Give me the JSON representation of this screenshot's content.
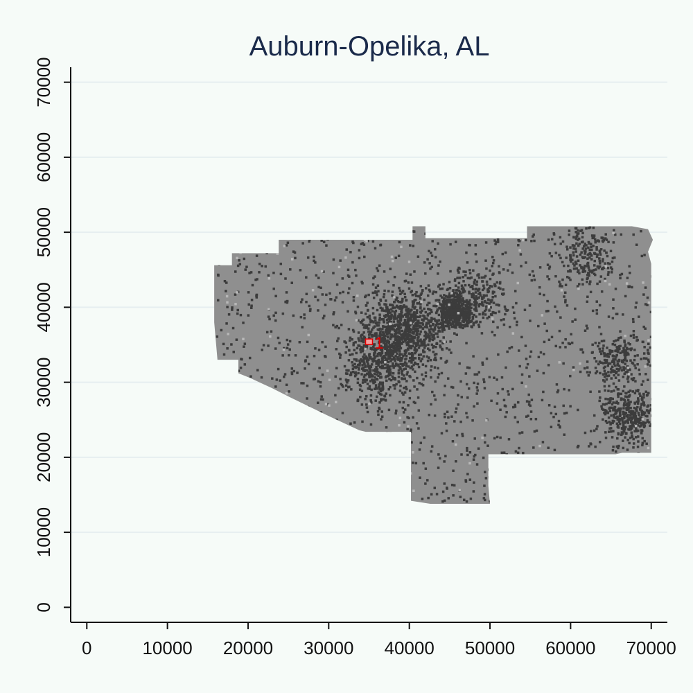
{
  "chart_data": {
    "type": "scatter",
    "title": "Auburn-Opelika, AL",
    "xlabel": "",
    "ylabel": "",
    "xlim": [
      -2000,
      72000
    ],
    "ylim": [
      -2000,
      72000
    ],
    "x_ticks": [
      "0",
      "10000",
      "20000",
      "30000",
      "40000",
      "50000",
      "60000",
      "70000"
    ],
    "y_ticks": [
      "0",
      "10000",
      "20000",
      "30000",
      "40000",
      "50000",
      "60000",
      "70000"
    ],
    "grid": "horizontal",
    "legend": "none",
    "region_outline": [
      [
        15800,
        45600
      ],
      [
        18000,
        45600
      ],
      [
        18000,
        47200
      ],
      [
        23800,
        47200
      ],
      [
        23800,
        49000
      ],
      [
        40400,
        49000
      ],
      [
        40400,
        50800
      ],
      [
        42000,
        50800
      ],
      [
        42000,
        49200
      ],
      [
        54600,
        49200
      ],
      [
        54600,
        50800
      ],
      [
        67600,
        50800
      ],
      [
        69600,
        50400
      ],
      [
        70200,
        49000
      ],
      [
        69600,
        47400
      ],
      [
        70000,
        45800
      ],
      [
        70000,
        20600
      ],
      [
        66400,
        20600
      ],
      [
        65600,
        20400
      ],
      [
        49800,
        20400
      ],
      [
        49800,
        16200
      ],
      [
        50000,
        13800
      ],
      [
        42600,
        13800
      ],
      [
        40200,
        14200
      ],
      [
        40200,
        23400
      ],
      [
        34600,
        23400
      ],
      [
        33800,
        23600
      ],
      [
        29800,
        25600
      ],
      [
        25200,
        28000
      ],
      [
        23000,
        29200
      ],
      [
        20200,
        30600
      ],
      [
        18800,
        31200
      ],
      [
        18800,
        33000
      ],
      [
        16200,
        33000
      ],
      [
        15800,
        38000
      ]
    ],
    "series": [
      {
        "values": [
          [
            35000,
            35400
          ]
        ],
        "label": "1"
      }
    ],
    "colors": {
      "background": "#f6fbf8",
      "region": "#8f8f8f",
      "dense_cells": "#3c3c3c",
      "light_cells": "#b8b8b8",
      "grid": "#e6eef0",
      "axis": "#111111",
      "marker": "#e00000",
      "title": "#1a2a4a"
    }
  }
}
